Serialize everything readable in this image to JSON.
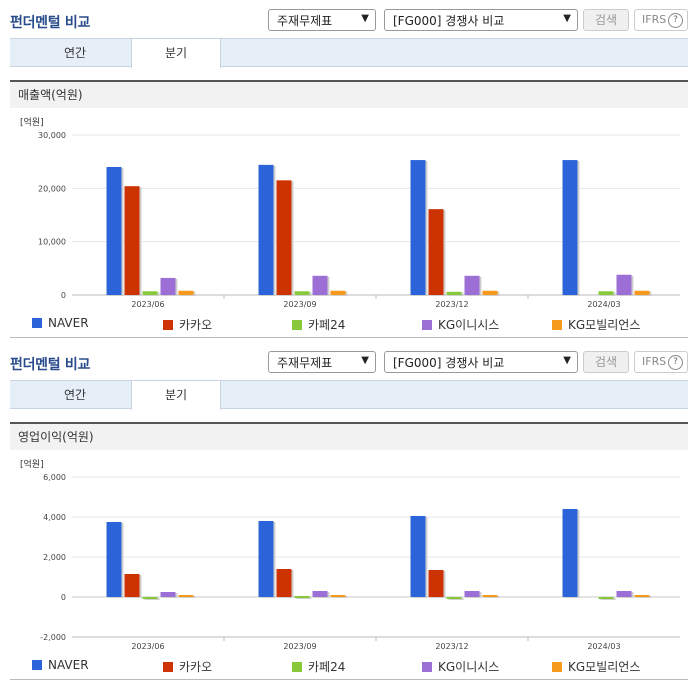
{
  "colors": [
    "#2a64d8",
    "#cc3300",
    "#88c93c",
    "#9c6fd6",
    "#f59a1d"
  ],
  "panels": [
    {
      "title": "펀더멘털 비교",
      "select1": "주재무제표",
      "select2": "[FG000] 경쟁사 비교",
      "search_label": "검색",
      "ifrs_label": "IFRS",
      "help_glyph": "?",
      "tabs": [
        "연간",
        "분기"
      ],
      "metric": "매출액(억원)"
    },
    {
      "title": "펀더멘털 비교",
      "select1": "주재무제표",
      "select2": "[FG000] 경쟁사 비교",
      "search_label": "검색",
      "ifrs_label": "IFRS",
      "help_glyph": "?",
      "tabs": [
        "연간",
        "분기"
      ],
      "metric": "영업이익(억원)"
    }
  ],
  "chart_data": [
    {
      "type": "bar",
      "unit_label": "[억원]",
      "categories": [
        "2023/06",
        "2023/09",
        "2023/12",
        "2024/03"
      ],
      "ylim": [
        0,
        30000
      ],
      "yticks": [
        0,
        10000,
        20000,
        30000
      ],
      "ytick_labels": [
        "0",
        "10,000",
        "20,000",
        "30,000"
      ],
      "series": [
        {
          "name": "NAVER",
          "values": [
            24000,
            24400,
            25300,
            25300
          ]
        },
        {
          "name": "카카오",
          "values": [
            20400,
            21500,
            16100,
            null
          ]
        },
        {
          "name": "카페24",
          "values": [
            700,
            700,
            600,
            700
          ]
        },
        {
          "name": "KG이니시스",
          "values": [
            3200,
            3600,
            3600,
            3800
          ]
        },
        {
          "name": "KG모빌리언스",
          "values": [
            800,
            800,
            800,
            800
          ]
        }
      ]
    },
    {
      "type": "bar",
      "unit_label": "[억원]",
      "categories": [
        "2023/06",
        "2023/09",
        "2023/12",
        "2024/03"
      ],
      "ylim": [
        -2000,
        6000
      ],
      "yticks": [
        -2000,
        0,
        2000,
        4000,
        6000
      ],
      "ytick_labels": [
        "-2,000",
        "0",
        "2,000",
        "4,000",
        "6,000"
      ],
      "series": [
        {
          "name": "NAVER",
          "values": [
            3750,
            3800,
            4050,
            4400
          ]
        },
        {
          "name": "카카오",
          "values": [
            1150,
            1400,
            1350,
            null
          ]
        },
        {
          "name": "카페24",
          "values": [
            -100,
            50,
            -50,
            -50
          ]
        },
        {
          "name": "KG이니시스",
          "values": [
            250,
            300,
            300,
            300
          ]
        },
        {
          "name": "KG모빌리언스",
          "values": [
            100,
            100,
            100,
            100
          ]
        }
      ]
    }
  ]
}
